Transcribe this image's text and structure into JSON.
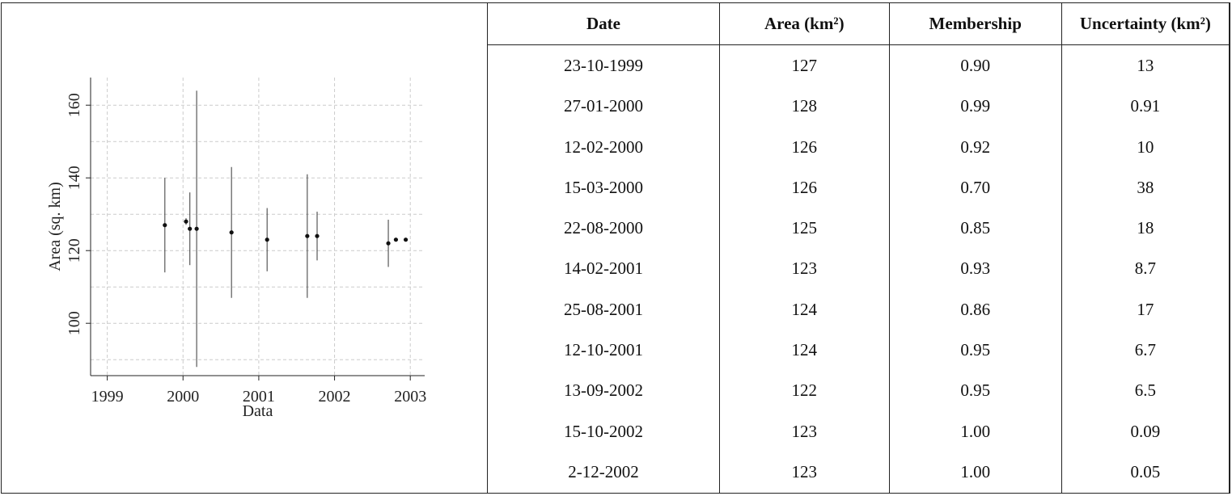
{
  "chart_data": {
    "type": "errorbar-scatter",
    "x_label": "Data",
    "y_label": "Area (sq. km)",
    "xlim": [
      1998.78,
      2003.19
    ],
    "xticks": [
      1999,
      2000,
      2001,
      2002,
      2003
    ],
    "ylim": [
      85.6,
      167.6
    ],
    "yticks": [
      100,
      120,
      140,
      160
    ],
    "ygrid": [
      90,
      100,
      110,
      120,
      130,
      140,
      150,
      160
    ],
    "grid": true,
    "series": [
      {
        "color": "#111111",
        "x": [
          1999.76,
          2000.04,
          2000.09,
          2000.18,
          2000.64,
          2001.11,
          2001.64,
          2001.77,
          2002.71,
          2002.81,
          2002.94
        ],
        "values": [
          127,
          128,
          126,
          126,
          125,
          123,
          124,
          124,
          122,
          123,
          123
        ],
        "errors": [
          13,
          0.91,
          10,
          38,
          18,
          8.7,
          17,
          6.7,
          6.5,
          0.09,
          0.05
        ]
      }
    ]
  },
  "table": {
    "header": [
      "Date",
      "Area (km²)",
      "Membership",
      "Uncertainty (km²)"
    ],
    "rows": [
      [
        "23-10-1999",
        "127",
        "0.90",
        "13"
      ],
      [
        "27-01-2000",
        "128",
        "0.99",
        "0.91"
      ],
      [
        "12-02-2000",
        "126",
        "0.92",
        "10"
      ],
      [
        "15-03-2000",
        "126",
        "0.70",
        "38"
      ],
      [
        "22-08-2000",
        "125",
        "0.85",
        "18"
      ],
      [
        "14-02-2001",
        "123",
        "0.93",
        "8.7"
      ],
      [
        "25-08-2001",
        "124",
        "0.86",
        "17"
      ],
      [
        "12-10-2001",
        "124",
        "0.95",
        "6.7"
      ],
      [
        "13-09-2002",
        "122",
        "0.95",
        "6.5"
      ],
      [
        "15-10-2002",
        "123",
        "1.00",
        "0.09"
      ],
      [
        "2-12-2002",
        "123",
        "1.00",
        "0.05"
      ]
    ]
  }
}
